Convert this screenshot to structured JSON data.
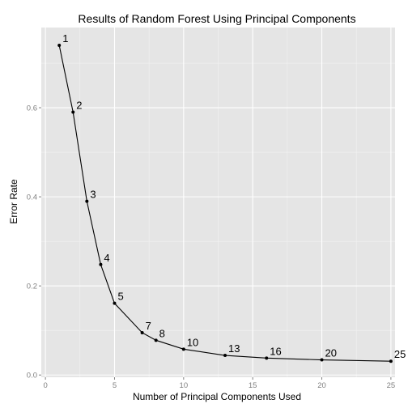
{
  "chart_data": {
    "type": "line",
    "title": "Results of Random Forest Using Principal Components",
    "xlabel": "Number of Principal Components Used",
    "ylabel": "Error Rate",
    "xlim": [
      -0.3,
      25.3
    ],
    "ylim": [
      -0.005,
      0.78
    ],
    "x_ticks": [
      0,
      5,
      10,
      15,
      20,
      25
    ],
    "x_tick_labels": [
      "0",
      "5",
      "10",
      "15",
      "20",
      "25"
    ],
    "y_ticks": [
      0.0,
      0.2,
      0.4,
      0.6
    ],
    "y_tick_labels": [
      "0.0",
      "0.2",
      "0.4",
      "0.6"
    ],
    "grid": true,
    "legend": "none",
    "colors": {
      "panel_background": "#e5e5e5",
      "major_grid": "#ffffff",
      "minor_grid": "#f2f2f2",
      "line": "#000000",
      "point": "#000000",
      "tick_label": "#7f7f7f"
    },
    "series": [
      {
        "x": [
          1,
          2,
          3,
          4,
          5,
          7,
          8,
          10,
          13,
          16,
          20,
          25
        ],
        "y": [
          0.74,
          0.59,
          0.39,
          0.248,
          0.161,
          0.095,
          0.078,
          0.058,
          0.044,
          0.038,
          0.034,
          0.031
        ],
        "labels": [
          "1",
          "2",
          "3",
          "4",
          "5",
          "7",
          "8",
          "10",
          "13",
          "16",
          "20",
          "25"
        ]
      }
    ]
  }
}
